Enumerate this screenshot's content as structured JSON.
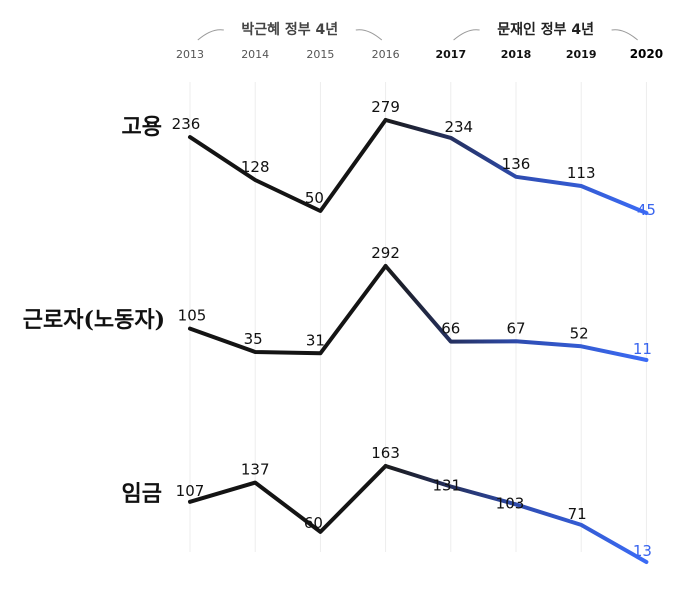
{
  "chart_data": {
    "type": "line",
    "x": [
      "2013",
      "2014",
      "2015",
      "2016",
      "2017",
      "2018",
      "2019",
      "2020"
    ],
    "eras": [
      {
        "label": "박근혜 정부 4년",
        "years": [
          "2013",
          "2014",
          "2015",
          "2016"
        ]
      },
      {
        "label": "문재인 정부 4년",
        "years": [
          "2017",
          "2018",
          "2019",
          "2020"
        ]
      }
    ],
    "series": [
      {
        "name": "고용",
        "values": [
          236,
          128,
          50,
          279,
          234,
          136,
          113,
          45
        ]
      },
      {
        "name": "근로자(노동자)",
        "values": [
          105,
          35,
          31,
          292,
          66,
          67,
          52,
          11
        ]
      },
      {
        "name": "임금",
        "values": [
          107,
          137,
          60,
          163,
          131,
          103,
          71,
          13
        ]
      }
    ],
    "colors": {
      "first_era": "#141414",
      "second_era_start": "#1e2a5a",
      "second_era_end": "#3b6bf5",
      "last_label": "#3a66ef"
    },
    "grid": true,
    "legend": "none"
  }
}
